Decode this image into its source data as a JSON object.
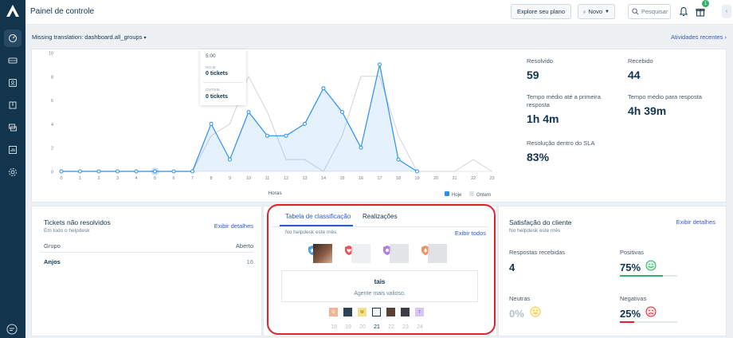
{
  "header": {
    "title": "Painel de controle",
    "plan_button": "Explore seu plano",
    "new_button": "Novo",
    "search_placeholder": "Pesquisar",
    "gift_badge": "1"
  },
  "subbar": {
    "filter": "Missing translation: dashboard.all_groups",
    "recent": "Atividades recentes"
  },
  "colors": {
    "brand": "#12344d",
    "link": "#2c5cc5",
    "today": "#2b8ff1",
    "yesterday": "#cfd5db",
    "highlight_ring": "#e0222c",
    "positive": "#2eb168",
    "negative": "#e0222c"
  },
  "chart_data": {
    "type": "area",
    "x": [
      "0",
      "1",
      "2",
      "3",
      "4",
      "5",
      "6",
      "7",
      "8",
      "9",
      "10",
      "11",
      "12",
      "13",
      "14",
      "15",
      "16",
      "17",
      "18",
      "19",
      "20",
      "21",
      "22",
      "23"
    ],
    "xlabel": "Horas",
    "ylim": [
      0,
      10
    ],
    "yticks": [
      "0",
      "2",
      "4",
      "6",
      "8",
      "10"
    ],
    "series": [
      {
        "name": "Hoje",
        "values": [
          0,
          0,
          0,
          0,
          0,
          0,
          0,
          0,
          4,
          1,
          5,
          3,
          3,
          4,
          7,
          5,
          2,
          9,
          1,
          0,
          null,
          null,
          null,
          null
        ]
      },
      {
        "name": "Ontem",
        "values": [
          0,
          0,
          0,
          0,
          0,
          0,
          0,
          0,
          3,
          4,
          8,
          5,
          1,
          1,
          0,
          3,
          8,
          8,
          3,
          0,
          0,
          0,
          1,
          0
        ]
      }
    ],
    "legend": "bottom-right",
    "tooltip": {
      "time": "5:00",
      "today_label": "HOJE",
      "today_value": "0 tickets",
      "yesterday_label": "ONTEM",
      "yesterday_value": "0 tickets"
    }
  },
  "stats": [
    {
      "label": "Resolvido",
      "value": "59"
    },
    {
      "label": "Recebido",
      "value": "44"
    },
    {
      "label": "Tempo médio até a primeira resposta",
      "value": "1h 4m"
    },
    {
      "label": "Tempo médio para resposta",
      "value": "4h 39m"
    },
    {
      "label": "Resolução dentro do SLA",
      "value": "83%"
    }
  ],
  "unresolved": {
    "title": "Tickets não resolvidos",
    "subtitle": "Em todo o helpdesk",
    "link": "Exibir detalhes",
    "col_group": "Grupo",
    "col_open": "Aberto",
    "rows": [
      {
        "group": "Anjos",
        "open": "16"
      }
    ]
  },
  "leaderboard": {
    "tab_active": "Tabela de classificação",
    "tab_other": "Realizações",
    "subtitle": "No helpdesk este mês",
    "link": "Exibir todos",
    "agent_name": "tais",
    "agent_caption": "Agente mais valioso.",
    "thumbs": [
      "G",
      "",
      "M",
      "",
      "",
      "",
      "T"
    ],
    "days": [
      "18",
      "19",
      "20",
      "21",
      "22",
      "23",
      "24"
    ],
    "current_day": "21"
  },
  "satisfaction": {
    "title": "Satisfação do cliente",
    "subtitle": "No helpdesk este mês",
    "link": "Exibir detalhes",
    "received_label": "Respostas recebidas",
    "received_value": "4",
    "positive_label": "Positivas",
    "positive_value": "75%",
    "positive_fraction": 0.75,
    "neutral_label": "Neutras",
    "neutral_value": "0%",
    "neutral_fraction": 0,
    "negative_label": "Negativas",
    "negative_value": "25%",
    "negative_fraction": 0.25
  }
}
